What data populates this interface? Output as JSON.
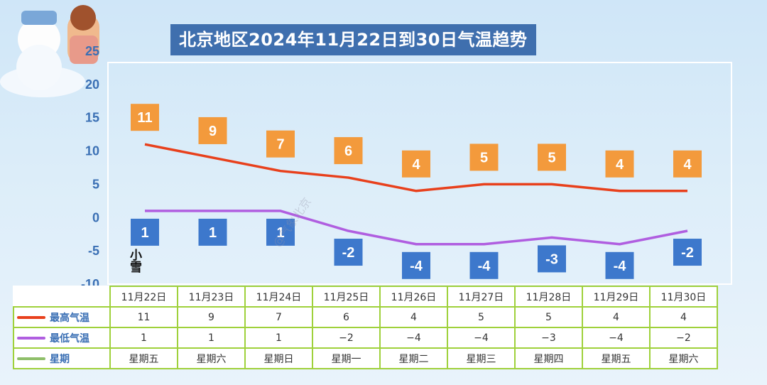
{
  "title": "北京地区2024年11月22日到30日气温趋势",
  "snow_label": "小雪",
  "watermark": "@气象北京",
  "chart_data": {
    "type": "line",
    "ylim": [
      -10,
      25
    ],
    "yticks": [
      25,
      20,
      15,
      10,
      5,
      0,
      -5,
      -10
    ],
    "categories": [
      "11月22日",
      "11月23日",
      "11月24日",
      "11月25日",
      "11月26日",
      "11月27日",
      "11月28日",
      "11月29日",
      "11月30日"
    ],
    "series": [
      {
        "name": "最高气温",
        "values": [
          11,
          9,
          7,
          6,
          4,
          5,
          5,
          4,
          4
        ],
        "color": "#e8401c",
        "label_color": "#f39a3c"
      },
      {
        "name": "最低气温",
        "values": [
          1,
          1,
          1,
          -2,
          -4,
          -4,
          -3,
          -4,
          -2
        ],
        "color": "#b05ee0",
        "label_color": "#3d78cc"
      }
    ],
    "weekday_row_name": "星期",
    "weekday_color": "#8fbf6a",
    "weekdays": [
      "星期五",
      "星期六",
      "星期日",
      "星期一",
      "星期二",
      "星期三",
      "星期四",
      "星期五",
      "星期六"
    ],
    "low_labels_text": [
      "1",
      "1",
      "1",
      "−2",
      "−4",
      "−4",
      "−3",
      "−4",
      "−2"
    ]
  }
}
